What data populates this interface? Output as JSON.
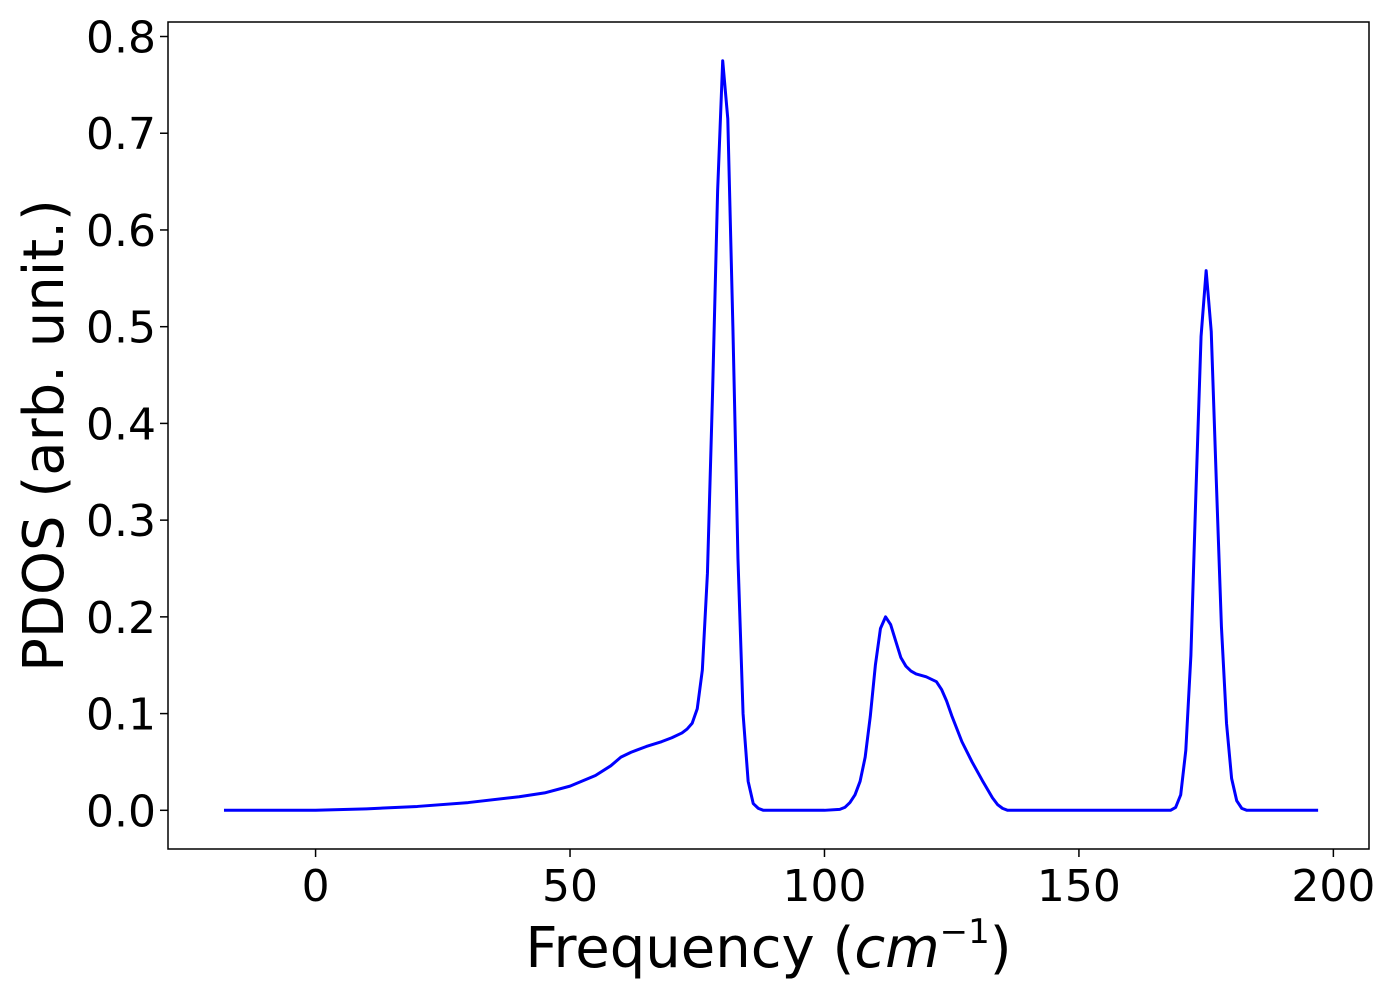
{
  "chart_data": {
    "type": "line",
    "xlabel": "Frequency (cm⁻¹)",
    "xlabel_parts": {
      "prefix": "Frequency (",
      "unit_base": "cm",
      "unit_exp": "−1",
      "suffix": ")"
    },
    "ylabel": "PDOS (arb. unit.)",
    "xlim": [
      -29,
      207
    ],
    "ylim": [
      -0.04,
      0.815
    ],
    "xticks": [
      0,
      50,
      100,
      150,
      200
    ],
    "xtick_labels": [
      "0",
      "50",
      "100",
      "150",
      "200"
    ],
    "yticks": [
      0.0,
      0.1,
      0.2,
      0.3,
      0.4,
      0.5,
      0.6,
      0.7,
      0.8
    ],
    "ytick_labels": [
      "0.0",
      "0.1",
      "0.2",
      "0.3",
      "0.4",
      "0.5",
      "0.6",
      "0.7",
      "0.8"
    ],
    "grid": false,
    "legend": "none",
    "series_color": "#0000ff",
    "x": [
      -18,
      0,
      10,
      20,
      30,
      40,
      45,
      50,
      55,
      58,
      60,
      62,
      65,
      68,
      70,
      72,
      73,
      74,
      75,
      76,
      77,
      78,
      79,
      80,
      81,
      82,
      83,
      84,
      85,
      86,
      87,
      88,
      90,
      100,
      103,
      104,
      105,
      106,
      107,
      108,
      109,
      110,
      111,
      112,
      113,
      114,
      115,
      116,
      117,
      118,
      120,
      122,
      123,
      124,
      125,
      127,
      129,
      131,
      133,
      134,
      135,
      136,
      140,
      150,
      160,
      168,
      169,
      170,
      171,
      172,
      173,
      174,
      175,
      176,
      177,
      178,
      179,
      180,
      181,
      182,
      183,
      184,
      186,
      197
    ],
    "y": [
      0.0,
      0.0,
      0.0015,
      0.004,
      0.008,
      0.014,
      0.018,
      0.025,
      0.036,
      0.046,
      0.055,
      0.06,
      0.066,
      0.071,
      0.075,
      0.08,
      0.084,
      0.09,
      0.105,
      0.145,
      0.245,
      0.43,
      0.64,
      0.775,
      0.715,
      0.5,
      0.26,
      0.1,
      0.03,
      0.007,
      0.002,
      0.0,
      0.0,
      0.0,
      0.001,
      0.003,
      0.008,
      0.016,
      0.03,
      0.055,
      0.097,
      0.15,
      0.188,
      0.2,
      0.192,
      0.175,
      0.158,
      0.149,
      0.144,
      0.141,
      0.138,
      0.133,
      0.125,
      0.113,
      0.098,
      0.071,
      0.05,
      0.031,
      0.013,
      0.006,
      0.002,
      0.0,
      0.0,
      0.0,
      0.0,
      0.0,
      0.003,
      0.016,
      0.062,
      0.16,
      0.33,
      0.49,
      0.558,
      0.495,
      0.34,
      0.19,
      0.09,
      0.033,
      0.01,
      0.002,
      0.0,
      0.0,
      0.0,
      0.0
    ]
  }
}
